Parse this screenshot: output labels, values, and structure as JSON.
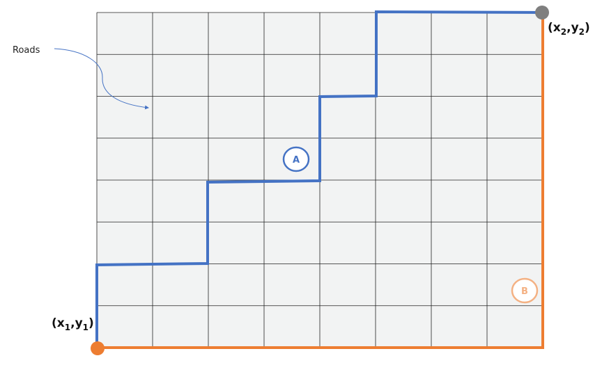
{
  "labels": {
    "roads": "Roads",
    "route_a": "A",
    "route_b": "B",
    "start_x": "x",
    "start_y": "y",
    "start_sub": "1",
    "end_x": "x",
    "end_y": "y",
    "end_sub": "2"
  },
  "grid": {
    "columns": 8,
    "rows": 8
  },
  "colors": {
    "grid_fill": "#f2f3f3",
    "grid_line": "#222222",
    "route_a": "#4472c4",
    "route_b": "#ed7d31",
    "start_point": "#ed7d31",
    "end_point": "#7f7f7f"
  }
}
